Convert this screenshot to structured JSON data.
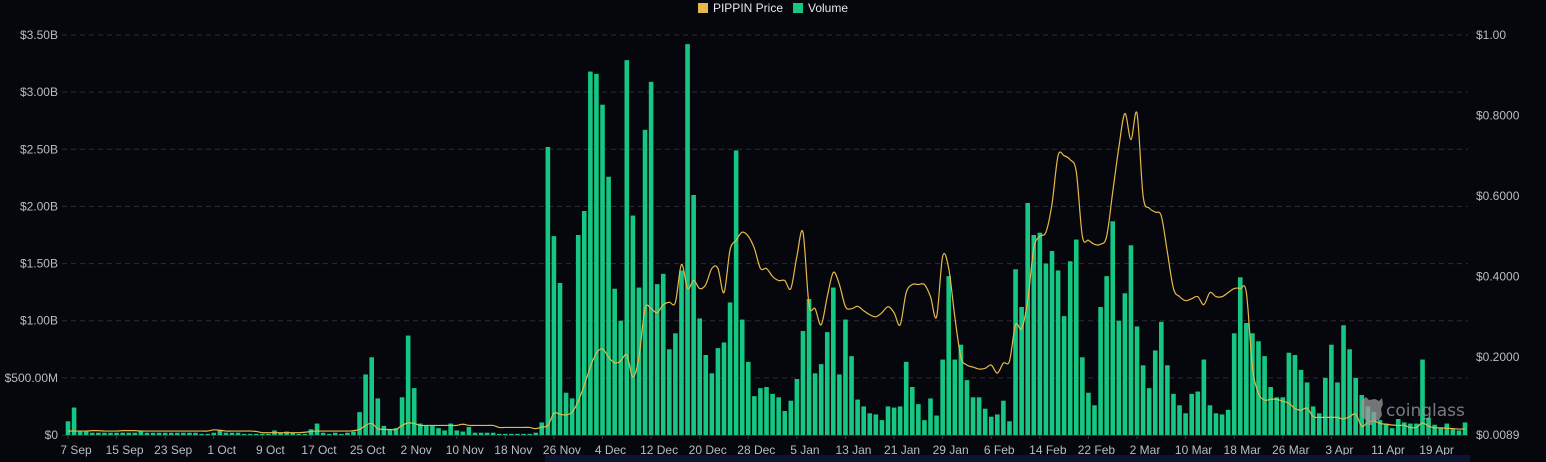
{
  "legend": {
    "price_label": "PIPPIN Price",
    "volume_label": "Volume"
  },
  "watermark": "coinglass",
  "colors": {
    "price": "#e6b84a",
    "volume": "#16c784",
    "background": "#05070c",
    "grid": "#2a2d35",
    "axis_text": "#b8bcc4"
  },
  "chart_data": {
    "type": "bar+line",
    "series": [
      {
        "name": "Volume",
        "type": "bar",
        "axis": "left"
      },
      {
        "name": "PIPPIN Price",
        "type": "line",
        "axis": "right"
      }
    ],
    "x_ticks": [
      "7 Sep",
      "15 Sep",
      "23 Sep",
      "1 Oct",
      "9 Oct",
      "17 Oct",
      "25 Oct",
      "2 Nov",
      "10 Nov",
      "18 Nov",
      "26 Nov",
      "4 Dec",
      "12 Dec",
      "20 Dec",
      "28 Dec",
      "5 Jan",
      "13 Jan",
      "21 Jan",
      "29 Jan",
      "6 Feb",
      "14 Feb",
      "22 Feb",
      "2 Mar",
      "10 Mar",
      "18 Mar",
      "26 Mar",
      "3 Apr",
      "11 Apr",
      "19 Apr"
    ],
    "left_axis": {
      "ticks": [
        0,
        0.5,
        1,
        1.5,
        2,
        2.5,
        3,
        3.5
      ],
      "tick_labels": [
        "$0",
        "$500.00M",
        "$1.00B",
        "$1.50B",
        "$2.00B",
        "$2.50B",
        "$3.00B",
        "$3.50B"
      ],
      "ylim": [
        0,
        3.5
      ],
      "unit": "B USD"
    },
    "right_axis": {
      "ticks": [
        0.0089,
        0.2,
        0.4,
        0.6,
        0.8,
        1.0
      ],
      "tick_labels": [
        "$0.0089",
        "$0.2000",
        "$0.4000",
        "$0.6000",
        "$0.8000",
        "$1.00"
      ],
      "ylim": [
        0,
        1.0
      ]
    },
    "grid": true,
    "legend_position": "top-center",
    "volume": [
      0.12,
      0.24,
      0.03,
      0.03,
      0.02,
      0.02,
      0.02,
      0.02,
      0.02,
      0.02,
      0.02,
      0.02,
      0.04,
      0.02,
      0.02,
      0.02,
      0.02,
      0.02,
      0.02,
      0.02,
      0.02,
      0.02,
      0.01,
      0.01,
      0.02,
      0.04,
      0.02,
      0.02,
      0.02,
      0.01,
      0.01,
      0.01,
      0.01,
      0.01,
      0.04,
      0.02,
      0.03,
      0.02,
      0.01,
      0.01,
      0.05,
      0.1,
      0.02,
      0.01,
      0.02,
      0.01,
      0.02,
      0.03,
      0.2,
      0.53,
      0.68,
      0.32,
      0.08,
      0.05,
      0.06,
      0.33,
      0.87,
      0.41,
      0.1,
      0.08,
      0.08,
      0.06,
      0.04,
      0.1,
      0.04,
      0.03,
      0.07,
      0.02,
      0.02,
      0.02,
      0.02,
      0.01,
      0.01,
      0.01,
      0.01,
      0.01,
      0.01,
      0.02,
      0.11,
      2.52,
      1.74,
      1.33,
      0.37,
      0.32,
      1.75,
      1.96,
      3.18,
      3.16,
      2.89,
      2.26,
      1.28,
      1.0,
      3.28,
      1.92,
      1.29,
      2.67,
      3.09,
      1.32,
      1.41,
      0.75,
      0.89,
      1.44,
      3.42,
      2.1,
      1.02,
      0.7,
      0.54,
      0.76,
      0.81,
      1.16,
      2.49,
      1.01,
      0.64,
      0.34,
      0.41,
      0.42,
      0.36,
      0.33,
      0.21,
      0.3,
      0.49,
      0.91,
      1.19,
      0.54,
      0.62,
      0.9,
      1.29,
      0.53,
      1.01,
      0.69,
      0.31,
      0.25,
      0.19,
      0.18,
      0.13,
      0.25,
      0.24,
      0.25,
      0.64,
      0.42,
      0.27,
      0.13,
      0.32,
      0.17,
      0.66,
      1.39,
      0.66,
      0.79,
      0.48,
      0.33,
      0.33,
      0.23,
      0.16,
      0.18,
      0.3,
      0.12,
      1.45,
      1.12,
      2.03,
      1.75,
      1.77,
      1.5,
      1.61,
      1.44,
      1.04,
      1.52,
      1.71,
      0.68,
      0.37,
      0.26,
      1.12,
      1.39,
      1.87,
      1.0,
      1.24,
      1.66,
      0.95,
      0.61,
      0.41,
      0.74,
      0.99,
      0.61,
      0.36,
      0.26,
      0.19,
      0.36,
      0.38,
      0.66,
      0.26,
      0.19,
      0.18,
      0.22,
      0.89,
      1.38,
      0.98,
      0.89,
      0.82,
      0.69,
      0.42,
      0.33,
      0.33,
      0.72,
      0.7,
      0.57,
      0.46,
      0.25,
      0.19,
      0.5,
      0.79,
      0.46,
      0.96,
      0.75,
      0.5,
      0.35,
      0.25,
      0.2,
      0.13,
      0.1,
      0.06,
      0.14,
      0.11,
      0.1,
      0.1,
      0.66,
      0.15,
      0.09,
      0.06,
      0.1,
      0.05,
      0.04,
      0.11
    ],
    "price": [
      0.016,
      0.016,
      0.016,
      0.016,
      0.017,
      0.017,
      0.016,
      0.016,
      0.016,
      0.017,
      0.017,
      0.017,
      0.016,
      0.016,
      0.016,
      0.016,
      0.016,
      0.016,
      0.016,
      0.016,
      0.016,
      0.016,
      0.016,
      0.016,
      0.019,
      0.018,
      0.016,
      0.016,
      0.016,
      0.016,
      0.016,
      0.015,
      0.012,
      0.012,
      0.012,
      0.012,
      0.012,
      0.012,
      0.012,
      0.013,
      0.015,
      0.016,
      0.016,
      0.016,
      0.016,
      0.016,
      0.016,
      0.017,
      0.02,
      0.03,
      0.035,
      0.022,
      0.02,
      0.02,
      0.02,
      0.03,
      0.036,
      0.035,
      0.03,
      0.03,
      0.03,
      0.03,
      0.03,
      0.03,
      0.03,
      0.033,
      0.03,
      0.03,
      0.03,
      0.03,
      0.03,
      0.025,
      0.025,
      0.025,
      0.025,
      0.025,
      0.025,
      0.022,
      0.026,
      0.03,
      0.06,
      0.058,
      0.056,
      0.063,
      0.09,
      0.13,
      0.175,
      0.21,
      0.22,
      0.2,
      0.185,
      0.19,
      0.205,
      0.15,
      0.2,
      0.32,
      0.32,
      0.31,
      0.33,
      0.336,
      0.336,
      0.43,
      0.37,
      0.39,
      0.37,
      0.38,
      0.42,
      0.42,
      0.36,
      0.466,
      0.49,
      0.51,
      0.5,
      0.47,
      0.42,
      0.42,
      0.4,
      0.39,
      0.39,
      0.37,
      0.45,
      0.51,
      0.33,
      0.32,
      0.28,
      0.35,
      0.41,
      0.38,
      0.325,
      0.32,
      0.326,
      0.315,
      0.305,
      0.3,
      0.31,
      0.325,
      0.31,
      0.28,
      0.36,
      0.38,
      0.38,
      0.38,
      0.35,
      0.3,
      0.45,
      0.42,
      0.3,
      0.2,
      0.18,
      0.175,
      0.17,
      0.172,
      0.18,
      0.16,
      0.185,
      0.19,
      0.28,
      0.27,
      0.34,
      0.47,
      0.5,
      0.51,
      0.58,
      0.7,
      0.7,
      0.69,
      0.66,
      0.5,
      0.49,
      0.48,
      0.48,
      0.5,
      0.61,
      0.72,
      0.805,
      0.74,
      0.805,
      0.6,
      0.57,
      0.56,
      0.55,
      0.46,
      0.37,
      0.35,
      0.34,
      0.345,
      0.35,
      0.33,
      0.36,
      0.35,
      0.35,
      0.36,
      0.37,
      0.37,
      0.36,
      0.175,
      0.11,
      0.093,
      0.095,
      0.095,
      0.09,
      0.085,
      0.072,
      0.068,
      0.073,
      0.052,
      0.05,
      0.05,
      0.05,
      0.05,
      0.046,
      0.052,
      0.058,
      0.028,
      0.038,
      0.041,
      0.035,
      0.033,
      0.031,
      0.03,
      0.03,
      0.025,
      0.025,
      0.036,
      0.028,
      0.024,
      0.024,
      0.023,
      0.022,
      0.021,
      0.021
    ]
  }
}
